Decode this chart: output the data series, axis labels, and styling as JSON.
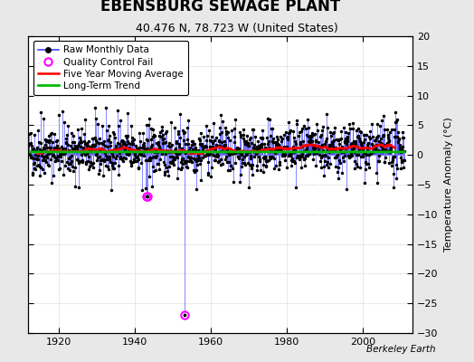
{
  "title": "EBENSBURG SEWAGE PLANT",
  "subtitle": "40.476 N, 78.723 W (United States)",
  "ylabel": "Temperature Anomaly (°C)",
  "credit": "Berkeley Earth",
  "year_start": 1912,
  "year_end": 2011,
  "ylim": [
    -30,
    20
  ],
  "yticks": [
    -30,
    -25,
    -20,
    -15,
    -10,
    -5,
    0,
    5,
    10,
    15,
    20
  ],
  "xlim": [
    1912,
    2013
  ],
  "xticks": [
    1920,
    1940,
    1960,
    1980,
    2000
  ],
  "legend_labels": [
    "Raw Monthly Data",
    "Quality Control Fail",
    "Five Year Moving Average",
    "Long-Term Trend"
  ],
  "raw_color": "#4444ff",
  "raw_marker_color": "#000000",
  "qc_color": "#ff00ff",
  "moving_avg_color": "#ff0000",
  "trend_color": "#00bb00",
  "background_color": "#e8e8e8",
  "plot_bg_color": "#ffffff",
  "title_fontsize": 12,
  "subtitle_fontsize": 9,
  "seed": 42,
  "noise_std": 2.0,
  "long_term_trend_slope": 0.006,
  "long_term_trend_intercept": 0.5
}
